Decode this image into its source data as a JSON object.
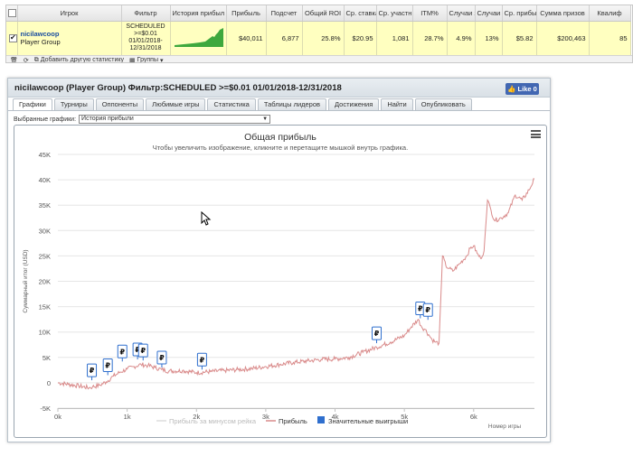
{
  "stats_table": {
    "headers": [
      "",
      "Игрок",
      "Фильтр",
      "История прибыл",
      "Прибыль",
      "Подсчет",
      "Общий ROI",
      "Ср. ставка",
      "Ср. участн",
      "ITM%",
      "Случаи з",
      "Случаи",
      "Ср. прибы",
      "Сумма призов",
      "Квалиф"
    ],
    "row": {
      "player": "nicilawcoop",
      "group": "Player Group",
      "filter_lines": [
        "SCHEDULED",
        ">=$0.01",
        "01/01/2018-",
        "12/31/2018"
      ],
      "values": [
        "$40,011",
        "6,877",
        "25.8%",
        "$20.95",
        "1,081",
        "28.7%",
        "4.9%",
        "13%",
        "$5.82",
        "$200,463",
        "85"
      ]
    },
    "toolbar": {
      "add_label": "Добавить другую статистику",
      "groups_label": "Группы"
    }
  },
  "panel": {
    "title": "nicilawcoop (Player Group) Фильтр:SCHEDULED >=$0.01 01/01/2018-12/31/2018",
    "like_label": "Like 0",
    "tabs": [
      "Графики",
      "Турниры",
      "Оппоненты",
      "Любимые игры",
      "Статистика",
      "Таблицы лидеров",
      "Достижения",
      "Найти",
      "Опубликовать"
    ],
    "active_tab": 0,
    "selector_label": "Выбранные графики:",
    "selector_value": "История прибыли"
  },
  "chart_data": {
    "type": "line",
    "title": "Общая прибыль",
    "subtitle": "Чтобы увеличить изображение, кликните и перетащите мышкой внутрь графика.",
    "xlabel": "Номер игры",
    "ylabel": "Суммарный итог (USD)",
    "xlim": [
      0,
      6877
    ],
    "ylim": [
      -5000,
      45000
    ],
    "x_ticks": [
      0,
      1000,
      2000,
      3000,
      4000,
      5000,
      6000
    ],
    "x_tick_labels": [
      "0k",
      "1k",
      "2k",
      "3k",
      "4k",
      "5k",
      "6k"
    ],
    "y_ticks": [
      -5000,
      0,
      5000,
      10000,
      15000,
      20000,
      25000,
      30000,
      35000,
      40000,
      45000
    ],
    "y_tick_labels": [
      "-5K",
      "0",
      "5K",
      "10K",
      "15K",
      "20K",
      "25K",
      "30K",
      "35K",
      "40K",
      "45K"
    ],
    "grid": true,
    "legend_position": "bottom",
    "series": [
      {
        "name": "Прибыль за минусом рейка",
        "color": "#dcdcdc",
        "x": [],
        "y": []
      },
      {
        "name": "Прибыль",
        "color": "#d98a8a",
        "x": [
          0,
          150,
          300,
          450,
          500,
          600,
          700,
          800,
          900,
          1000,
          1100,
          1200,
          1300,
          1400,
          1500,
          1600,
          1800,
          2000,
          2200,
          2400,
          2600,
          2800,
          3000,
          3200,
          3400,
          3600,
          3800,
          4000,
          4200,
          4400,
          4600,
          4800,
          5000,
          5100,
          5200,
          5250,
          5300,
          5350,
          5400,
          5450,
          5500,
          5550,
          5600,
          5650,
          5700,
          5800,
          5900,
          5950,
          6000,
          6050,
          6100,
          6150,
          6200,
          6250,
          6300,
          6400,
          6500,
          6600,
          6700,
          6800,
          6877
        ],
        "y": [
          0,
          -300,
          -600,
          -1000,
          -800,
          -500,
          200,
          1300,
          2100,
          2700,
          3200,
          3600,
          3400,
          3000,
          2600,
          2300,
          2400,
          2000,
          2200,
          2400,
          2600,
          2800,
          3200,
          3600,
          4000,
          4300,
          4600,
          4700,
          5000,
          6000,
          7000,
          8000,
          9300,
          11000,
          12500,
          11000,
          10500,
          9500,
          8500,
          8000,
          7800,
          25000,
          23000,
          22500,
          22000,
          23500,
          25000,
          26500,
          27000,
          25500,
          24500,
          26000,
          36000,
          34000,
          32000,
          32500,
          33500,
          37000,
          36000,
          38000,
          40200
        ]
      }
    ],
    "legend_entries": [
      "Прибыль за минусом рейка",
      "Прибыль",
      "Значительные выигрыши"
    ],
    "big_win_markers": {
      "symbol": "₽",
      "x": [
        490,
        720,
        930,
        1150,
        1230,
        1500,
        2080,
        4600,
        5230,
        5340
      ],
      "y": [
        500,
        1500,
        4200,
        4600,
        4400,
        3000,
        2600,
        7800,
        12700,
        12400
      ]
    }
  },
  "colors": {
    "accent": "#1b4fa0",
    "row_highlight": "#ffffc0",
    "profit_line": "#d98a8a",
    "bigwin": "#2f6fce",
    "facebook": "#4267b2",
    "sparkline": "#3ea83e"
  }
}
